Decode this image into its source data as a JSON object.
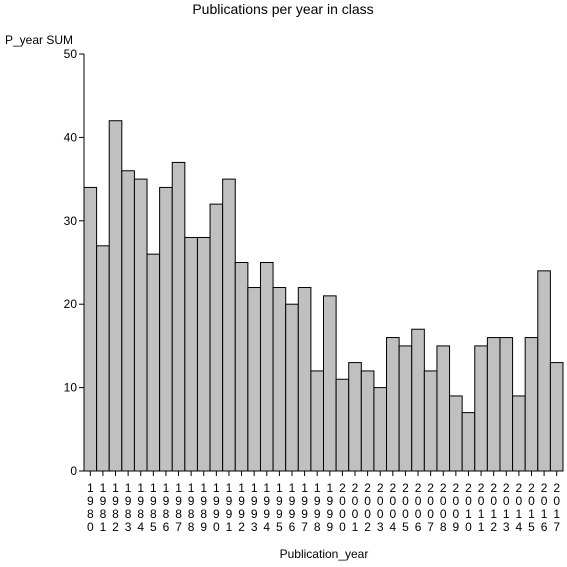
{
  "chart_data": {
    "type": "bar",
    "title": "Publications per year in class",
    "ylabel": "P_year SUM",
    "xlabel": "Publication_year",
    "ylim": [
      0,
      50
    ],
    "yticks": [
      0,
      10,
      20,
      30,
      40,
      50
    ],
    "categories": [
      "1980",
      "1981",
      "1982",
      "1983",
      "1984",
      "1985",
      "1986",
      "1987",
      "1988",
      "1989",
      "1990",
      "1991",
      "1992",
      "1993",
      "1994",
      "1995",
      "1996",
      "1997",
      "1998",
      "1999",
      "2000",
      "2001",
      "2002",
      "2003",
      "2004",
      "2005",
      "2006",
      "2007",
      "2008",
      "2009",
      "2010",
      "2011",
      "2012",
      "2013",
      "2014",
      "2015",
      "2016",
      "2017"
    ],
    "values": [
      34,
      27,
      42,
      36,
      35,
      26,
      34,
      37,
      28,
      28,
      32,
      35,
      25,
      22,
      25,
      22,
      20,
      22,
      12,
      21,
      11,
      13,
      12,
      10,
      16,
      15,
      17,
      12,
      15,
      9,
      7,
      15,
      16,
      16,
      9,
      16,
      24,
      13
    ],
    "colors": {
      "bar": "#c0c0c0",
      "edge": "#000000"
    }
  }
}
